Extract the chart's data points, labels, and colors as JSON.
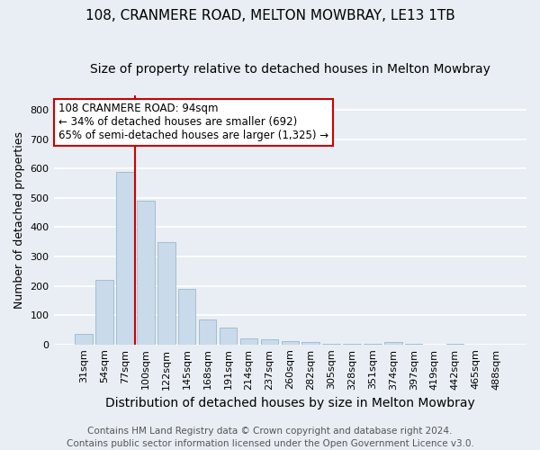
{
  "title": "108, CRANMERE ROAD, MELTON MOWBRAY, LE13 1TB",
  "subtitle": "Size of property relative to detached houses in Melton Mowbray",
  "xlabel": "Distribution of detached houses by size in Melton Mowbray",
  "ylabel": "Number of detached properties",
  "bar_color": "#c9daea",
  "bar_edgecolor": "#9ab8cc",
  "categories": [
    "31sqm",
    "54sqm",
    "77sqm",
    "100sqm",
    "122sqm",
    "145sqm",
    "168sqm",
    "191sqm",
    "214sqm",
    "237sqm",
    "260sqm",
    "282sqm",
    "305sqm",
    "328sqm",
    "351sqm",
    "374sqm",
    "397sqm",
    "419sqm",
    "442sqm",
    "465sqm",
    "488sqm"
  ],
  "values": [
    35,
    220,
    590,
    490,
    350,
    190,
    85,
    57,
    20,
    17,
    10,
    8,
    3,
    2,
    1,
    8,
    1,
    0,
    1,
    0,
    0
  ],
  "ylim": [
    0,
    850
  ],
  "yticks": [
    0,
    100,
    200,
    300,
    400,
    500,
    600,
    700,
    800
  ],
  "vline_position": 2.5,
  "vline_color": "#cc0000",
  "annotation_text": "108 CRANMERE ROAD: 94sqm\n← 34% of detached houses are smaller (692)\n65% of semi-detached houses are larger (1,325) →",
  "annotation_box_facecolor": "white",
  "annotation_box_edgecolor": "#cc0000",
  "footer1": "Contains HM Land Registry data © Crown copyright and database right 2024.",
  "footer2": "Contains public sector information licensed under the Open Government Licence v3.0.",
  "background_color": "#e8eef4",
  "grid_color": "#ffffff",
  "title_fontsize": 11,
  "subtitle_fontsize": 10,
  "xlabel_fontsize": 10,
  "ylabel_fontsize": 9,
  "tick_fontsize": 8,
  "footer_fontsize": 7.5
}
